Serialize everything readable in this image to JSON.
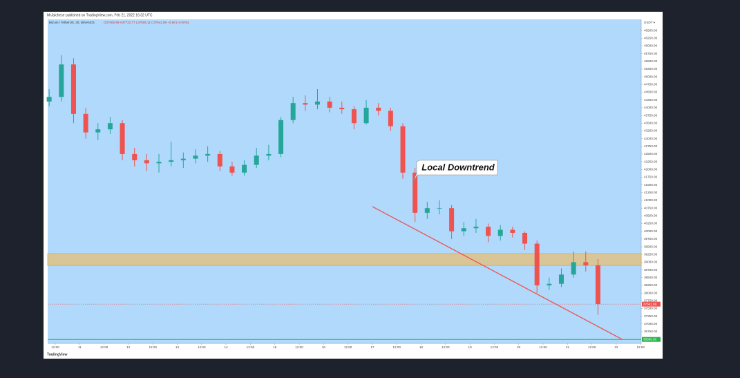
{
  "chart_data": {
    "type": "candlestick",
    "attribution": "MrJaichese published on TradingView.com, Feb 21, 2022 16:32 UTC",
    "symbol": "Bitcoin / TetherUS, 30, BINANCE",
    "ohlc_line": "O37606.99 H37722.77 L37505.11 C37641.99 −0.99 (−0.00%)",
    "currency": "USDT ▾",
    "logo": "TradingView",
    "annotation": "Local Downtrend",
    "up_color": "#26a69a",
    "down_color": "#ef5350",
    "ylim": [
      36370,
      46860
    ],
    "yticks": [
      {
        "value": 36750,
        "label": "36750.00"
      },
      {
        "value": 37000,
        "label": "37000.00"
      },
      {
        "value": 37250,
        "label": "37250.00"
      },
      {
        "value": 37500,
        "label": "37500.00"
      },
      {
        "value": 37750,
        "label": "37750.00"
      },
      {
        "value": 38000,
        "label": "38000.00"
      },
      {
        "value": 38250,
        "label": "38250.00"
      },
      {
        "value": 38500,
        "label": "38500.00"
      },
      {
        "value": 38750,
        "label": "38750.00"
      },
      {
        "value": 39000,
        "label": "39000.00"
      },
      {
        "value": 39250,
        "label": "39250.00"
      },
      {
        "value": 39500,
        "label": "39500.00"
      },
      {
        "value": 39750,
        "label": "39750.00"
      },
      {
        "value": 40000,
        "label": "40000.00"
      },
      {
        "value": 40250,
        "label": "40250.00"
      },
      {
        "value": 40500,
        "label": "40500.00"
      },
      {
        "value": 40750,
        "label": "40750.00"
      },
      {
        "value": 41000,
        "label": "41000.00"
      },
      {
        "value": 41250,
        "label": "41250.00"
      },
      {
        "value": 41500,
        "label": "41500.00"
      },
      {
        "value": 41750,
        "label": "41750.00"
      },
      {
        "value": 42000,
        "label": "42000.00"
      },
      {
        "value": 42250,
        "label": "42250.00"
      },
      {
        "value": 42500,
        "label": "42500.00"
      },
      {
        "value": 42750,
        "label": "42750.00"
      },
      {
        "value": 43000,
        "label": "43000.00"
      },
      {
        "value": 43250,
        "label": "43250.00"
      },
      {
        "value": 43500,
        "label": "43500.00"
      },
      {
        "value": 43750,
        "label": "43750.00"
      },
      {
        "value": 44000,
        "label": "44000.00"
      },
      {
        "value": 44250,
        "label": "44250.00"
      },
      {
        "value": 44500,
        "label": "44500.00"
      },
      {
        "value": 44750,
        "label": "44750.00"
      },
      {
        "value": 45000,
        "label": "45000.00"
      },
      {
        "value": 45250,
        "label": "45250.00"
      },
      {
        "value": 45500,
        "label": "45500.00"
      },
      {
        "value": 45750,
        "label": "45750.00"
      },
      {
        "value": 46000,
        "label": "46000.00"
      },
      {
        "value": 46250,
        "label": "46250.00"
      },
      {
        "value": 46500,
        "label": "46500.00"
      }
    ],
    "xticks": [
      "12:00",
      "11",
      "12:00",
      "12",
      "12:00",
      "13",
      "12:00",
      "14",
      "12:00",
      "15",
      "12:00",
      "16",
      "12:00",
      "17",
      "12:00",
      "18",
      "12:00",
      "19",
      "12:00",
      "20",
      "12:00",
      "21",
      "12:00",
      "22",
      "12:00"
    ],
    "open": [
      44200,
      44350,
      45400,
      43800,
      43200,
      43300,
      43500,
      42500,
      42300,
      42200,
      42250,
      42300,
      42350,
      42450,
      42500,
      42100,
      41900,
      42150,
      42450,
      42500,
      43600,
      44150,
      44100,
      44200,
      44000,
      43950,
      43500,
      44000,
      43900,
      43400,
      41900,
      40600,
      40750,
      40750,
      40000,
      40100,
      40150,
      39850,
      40050,
      39950,
      39600,
      38250,
      38300,
      38600,
      39000,
      38900
    ],
    "high": [
      44600,
      45700,
      45600,
      44000,
      43500,
      43700,
      43600,
      42700,
      42500,
      42500,
      42900,
      42550,
      42650,
      42750,
      42600,
      42250,
      42300,
      42700,
      42800,
      43700,
      44350,
      44400,
      44600,
      44350,
      44200,
      44050,
      44250,
      44150,
      44000,
      43500,
      42050,
      40950,
      41000,
      40850,
      40300,
      40400,
      40250,
      40200,
      40150,
      40000,
      39700,
      38500,
      38800,
      39350,
      39350,
      39100
    ],
    "low": [
      44050,
      44200,
      43500,
      43000,
      42950,
      43150,
      42300,
      42100,
      41950,
      41900,
      42100,
      42050,
      42200,
      42250,
      41950,
      41800,
      41800,
      42050,
      42300,
      42400,
      43500,
      43900,
      43950,
      43850,
      43800,
      43300,
      43450,
      43750,
      43250,
      41700,
      40300,
      40400,
      40550,
      39750,
      39850,
      39950,
      39650,
      39700,
      39800,
      39400,
      38000,
      38100,
      38200,
      38500,
      38700,
      37300
    ],
    "close": [
      44350,
      45400,
      43800,
      43200,
      43300,
      43500,
      42500,
      42300,
      42200,
      42250,
      42300,
      42350,
      42450,
      42500,
      42100,
      41900,
      42150,
      42450,
      42500,
      43600,
      44150,
      44100,
      44200,
      44000,
      43950,
      43500,
      44000,
      43900,
      43400,
      41900,
      40600,
      40750,
      40750,
      40000,
      40100,
      40150,
      39850,
      40050,
      39950,
      39600,
      38250,
      38300,
      38600,
      39000,
      38900,
      37641.99
    ],
    "last_price": 37641.99,
    "resistance_zone": [
      38895,
      39275
    ],
    "support_level": {
      "value": 36500,
      "label": "36500.00"
    },
    "trendline": {
      "start": [
        26.5,
        40800
      ],
      "end": [
        47,
        36500
      ]
    }
  }
}
